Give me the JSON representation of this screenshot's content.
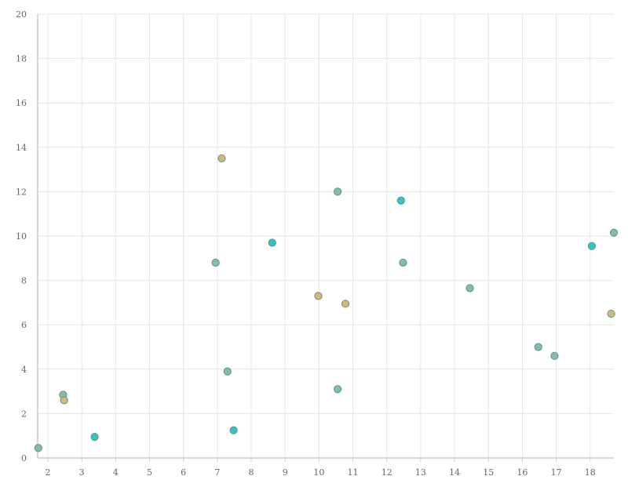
{
  "chart_data": {
    "type": "scatter",
    "title": "",
    "xlabel": "",
    "ylabel": "",
    "xlim": [
      1.7,
      18.7
    ],
    "ylim": [
      0,
      20
    ],
    "x_ticks": [
      2,
      3,
      4,
      5,
      6,
      7,
      8,
      9,
      10,
      11,
      12,
      13,
      14,
      15,
      16,
      17,
      18
    ],
    "y_ticks": [
      0,
      2,
      4,
      6,
      8,
      10,
      12,
      14,
      16,
      18,
      20
    ],
    "grid": true,
    "legend": "none",
    "series": [
      {
        "color": "#7fbfa8",
        "points": [
          {
            "x": 1.72,
            "y": 0.45
          },
          {
            "x": 2.45,
            "y": 2.85
          },
          {
            "x": 6.95,
            "y": 8.8
          },
          {
            "x": 7.3,
            "y": 3.9
          },
          {
            "x": 10.55,
            "y": 12.0
          },
          {
            "x": 10.55,
            "y": 3.1
          },
          {
            "x": 12.48,
            "y": 8.8
          },
          {
            "x": 14.45,
            "y": 7.65
          },
          {
            "x": 16.47,
            "y": 5.0
          },
          {
            "x": 16.95,
            "y": 4.6
          },
          {
            "x": 18.7,
            "y": 10.15
          }
        ]
      },
      {
        "color": "#d6b67a",
        "points": [
          {
            "x": 2.48,
            "y": 2.6
          },
          {
            "x": 7.13,
            "y": 13.5
          },
          {
            "x": 9.98,
            "y": 7.3
          },
          {
            "x": 10.78,
            "y": 6.95
          },
          {
            "x": 18.62,
            "y": 6.5
          }
        ]
      },
      {
        "color": "#2ec7c9",
        "points": [
          {
            "x": 3.38,
            "y": 0.95
          },
          {
            "x": 7.48,
            "y": 1.25
          },
          {
            "x": 8.62,
            "y": 9.7
          },
          {
            "x": 12.42,
            "y": 11.6
          },
          {
            "x": 18.05,
            "y": 9.55
          }
        ]
      }
    ]
  }
}
